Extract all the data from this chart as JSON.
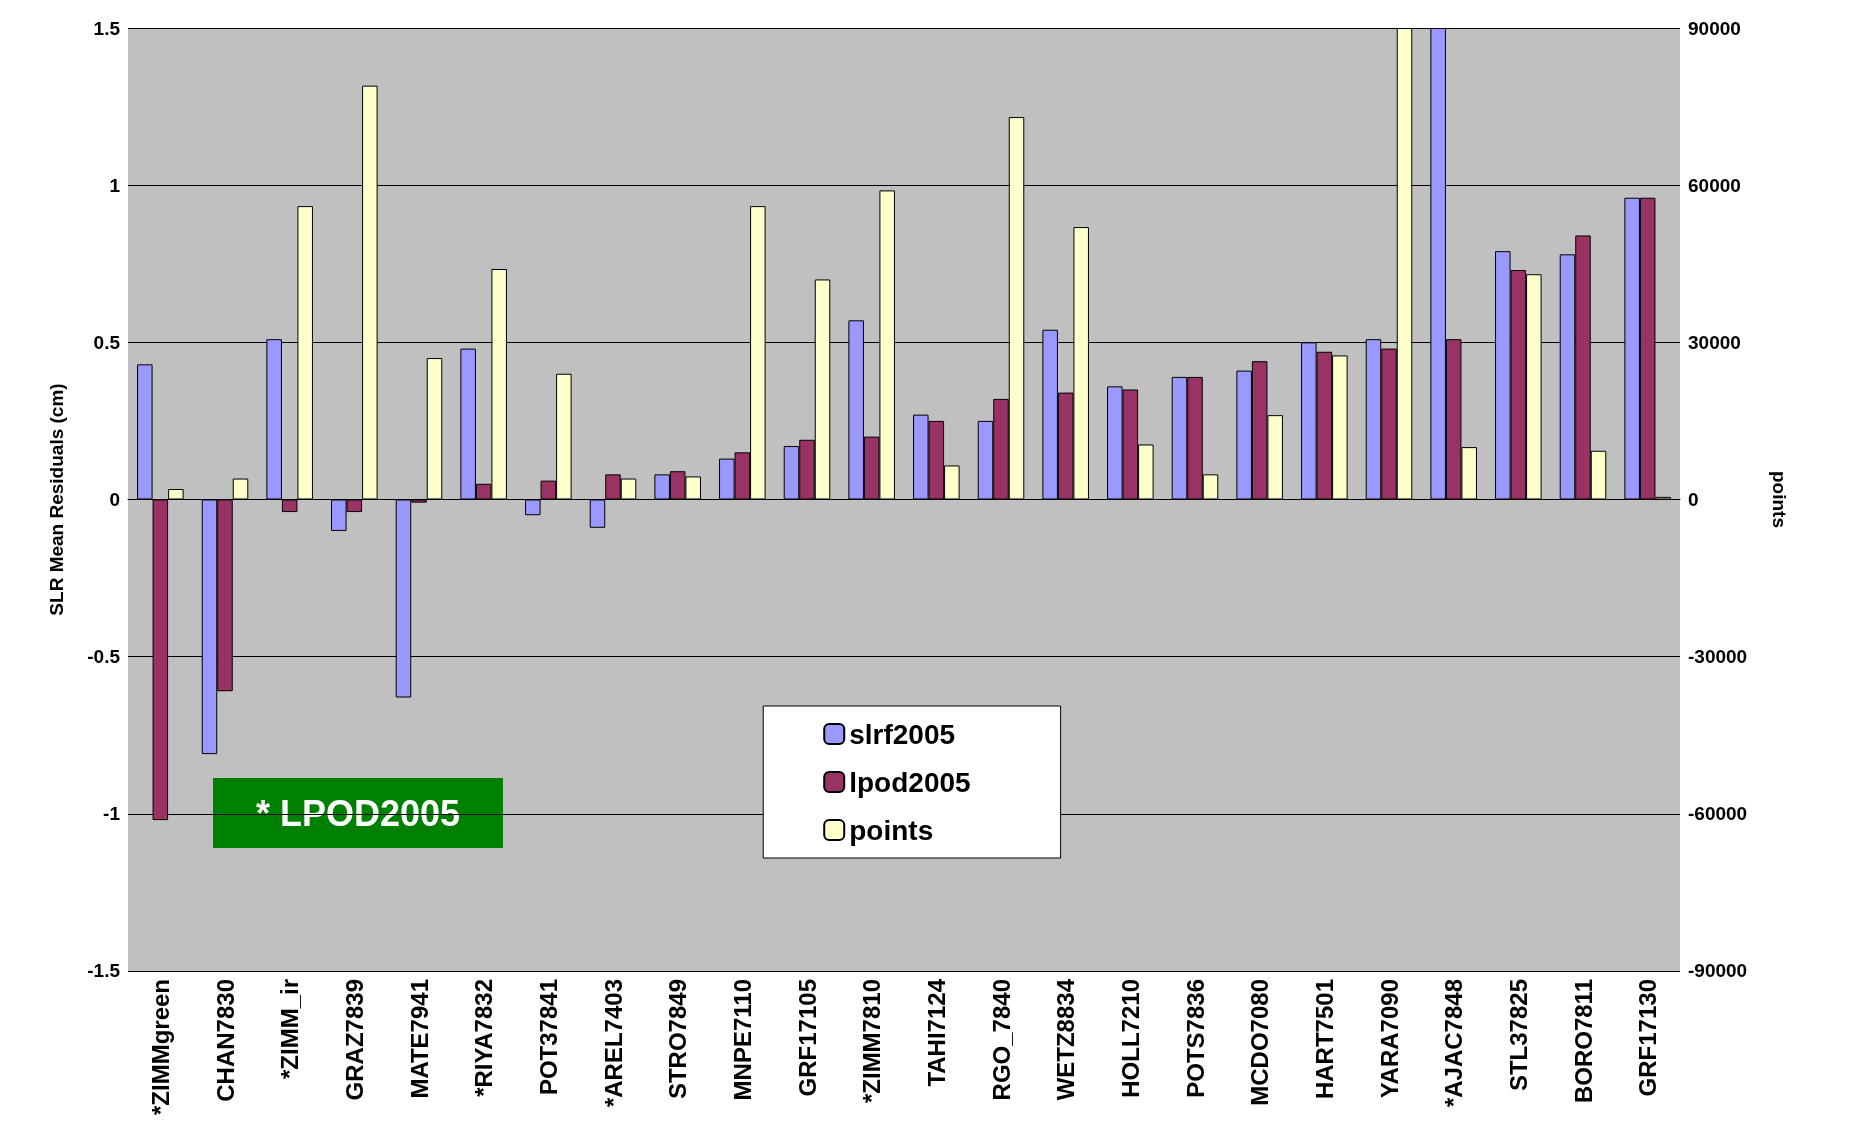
{
  "chart_data": {
    "type": "bar",
    "ylabel": "SLR Mean Residuals (cm)",
    "y2label": "points",
    "categories": [
      "*ZIMMgreen",
      "CHAN7830",
      "*ZIMM_ir",
      "GRAZ7839",
      "MATE7941",
      "*RIYA7832",
      "POT37841",
      "*AREL7403",
      "STRO7849",
      "MNPE7110",
      "GRF17105",
      "*ZIMM7810",
      "TAHI7124",
      "RGO_7840",
      "WETZ8834",
      "HOLL7210",
      "POTS7836",
      "MCDO7080",
      "HART7501",
      "YARA7090",
      "*AJAC7848",
      "STL37825",
      "BORO7811",
      "GRF17130"
    ],
    "series": [
      {
        "name": "slrf2005",
        "color": "#9999ff",
        "values": [
          0.43,
          -0.81,
          0.51,
          -0.1,
          -0.63,
          0.48,
          -0.05,
          -0.09,
          0.08,
          0.13,
          0.17,
          0.57,
          0.27,
          0.25,
          0.54,
          0.36,
          0.39,
          0.41,
          0.5,
          0.51,
          1.5,
          0.79,
          0.78,
          0.96
        ]
      },
      {
        "name": "lpod2005",
        "color": "#993366",
        "values": [
          -1.02,
          -0.61,
          -0.04,
          -0.04,
          -0.01,
          0.05,
          0.06,
          0.08,
          0.09,
          0.15,
          0.19,
          0.2,
          0.25,
          0.32,
          0.34,
          0.35,
          0.39,
          0.44,
          0.47,
          0.48,
          0.51,
          0.73,
          0.84,
          0.96
        ]
      },
      {
        "name": "points",
        "color": "#ffffcc",
        "axis": "y2",
        "values": [
          2000,
          4000,
          56000,
          79000,
          27000,
          44000,
          24000,
          4000,
          4400,
          56000,
          42000,
          59000,
          6500,
          73000,
          52000,
          10500,
          4800,
          16100,
          27500,
          90000,
          10000,
          43000,
          9300,
          500
        ]
      }
    ],
    "ylim": [
      -1.5,
      1.5
    ],
    "yticks": [
      -1.5,
      -1,
      -0.5,
      0,
      0.5,
      1,
      1.5
    ],
    "y2lim": [
      -90000,
      90000
    ],
    "y2ticks": [
      -90000,
      -60000,
      -30000,
      0,
      30000,
      60000,
      90000
    ],
    "grid": "y",
    "legend": "bottom",
    "annotations": [
      "* LPOD2005"
    ]
  }
}
